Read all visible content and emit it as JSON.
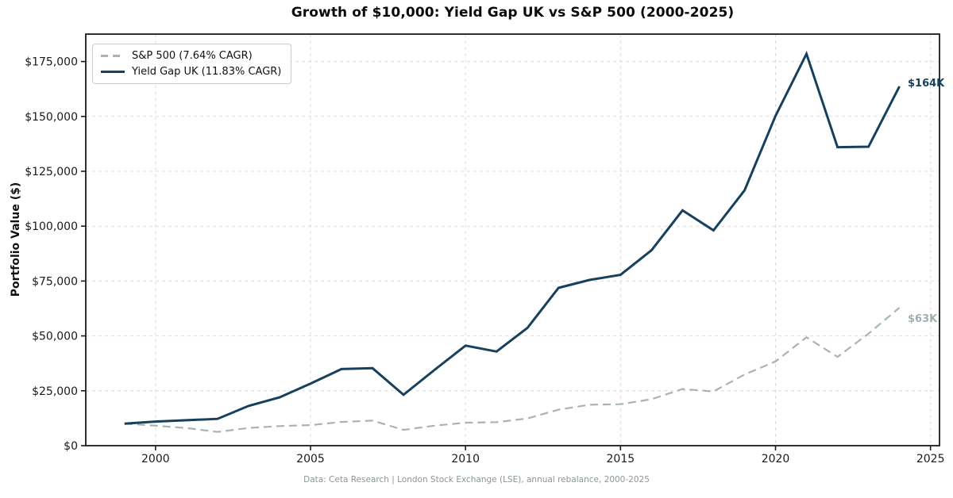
{
  "title": "Growth of $10,000: Yield Gap UK vs S&P 500 (2000-2025)",
  "y_axis_label": "Portfolio Value ($)",
  "footer": "Data: Ceta Research | London Stock Exchange (LSE), annual rebalance, 2000-2025",
  "colors": {
    "yieldgap": "#17405c",
    "sp500": "#a6b4b6",
    "sp500_label": "#9fafb3",
    "grid": "#dcdcdc",
    "spine": "#1a1a1a",
    "tick_text": "#1a1a1a"
  },
  "legend": {
    "items": [
      {
        "label": "S&P 500 (7.64% CAGR)",
        "style": "dashed",
        "color": "#a6b4b6"
      },
      {
        "label": "Yield Gap UK (11.83% CAGR)",
        "style": "solid",
        "color": "#17405c"
      }
    ]
  },
  "annotations": [
    {
      "text": "$164K",
      "series": "Yield Gap UK",
      "color": "#17405c"
    },
    {
      "text": "$63K",
      "series": "S&P 500",
      "color": "#9fafb3"
    }
  ],
  "chart_data": {
    "type": "line",
    "title": "Growth of $10,000: Yield Gap UK vs S&P 500 (2000-2025)",
    "xlabel": "",
    "ylabel": "Portfolio Value ($)",
    "grid": true,
    "legend_position": "upper left",
    "x": [
      1999,
      2000,
      2001,
      2002,
      2003,
      2004,
      2005,
      2006,
      2007,
      2008,
      2009,
      2010,
      2011,
      2012,
      2013,
      2014,
      2015,
      2016,
      2017,
      2018,
      2019,
      2020,
      2021,
      2022,
      2023,
      2024
    ],
    "series": [
      {
        "name": "S&P 500 (7.64% CAGR)",
        "color": "#a6b4b6",
        "dashed": true,
        "values": [
          10000,
          9100,
          8020,
          6250,
          8040,
          8910,
          9350,
          10820,
          11420,
          7190,
          9090,
          10460,
          10680,
          12390,
          16400,
          18650,
          18910,
          21170,
          25790,
          24660,
          32420,
          38380,
          49400,
          40440,
          51060,
          62850
        ]
      },
      {
        "name": "Yield Gap UK (11.83% CAGR)",
        "color": "#17405c",
        "dashed": false,
        "values": [
          10000,
          11000,
          11600,
          12200,
          18100,
          22000,
          28300,
          34900,
          35300,
          23200,
          34500,
          45600,
          42900,
          53700,
          71900,
          75500,
          77800,
          89000,
          107200,
          98100,
          116300,
          150200,
          178500,
          136000,
          136200,
          163700
        ]
      }
    ],
    "x_ticks": [
      2000,
      2005,
      2010,
      2015,
      2020,
      2025
    ],
    "x_tick_labels": [
      "2000",
      "2005",
      "2010",
      "2015",
      "2020",
      "2025"
    ],
    "y_ticks": [
      0,
      25000,
      50000,
      75000,
      100000,
      125000,
      150000,
      175000
    ],
    "y_tick_labels": [
      "$0",
      "$25,000",
      "$50,000",
      "$75,000",
      "$100,000",
      "$125,000",
      "$150,000",
      "$175,000"
    ],
    "xlim": [
      1997.75,
      2025.29
    ],
    "ylim": [
      0,
      187500
    ]
  }
}
